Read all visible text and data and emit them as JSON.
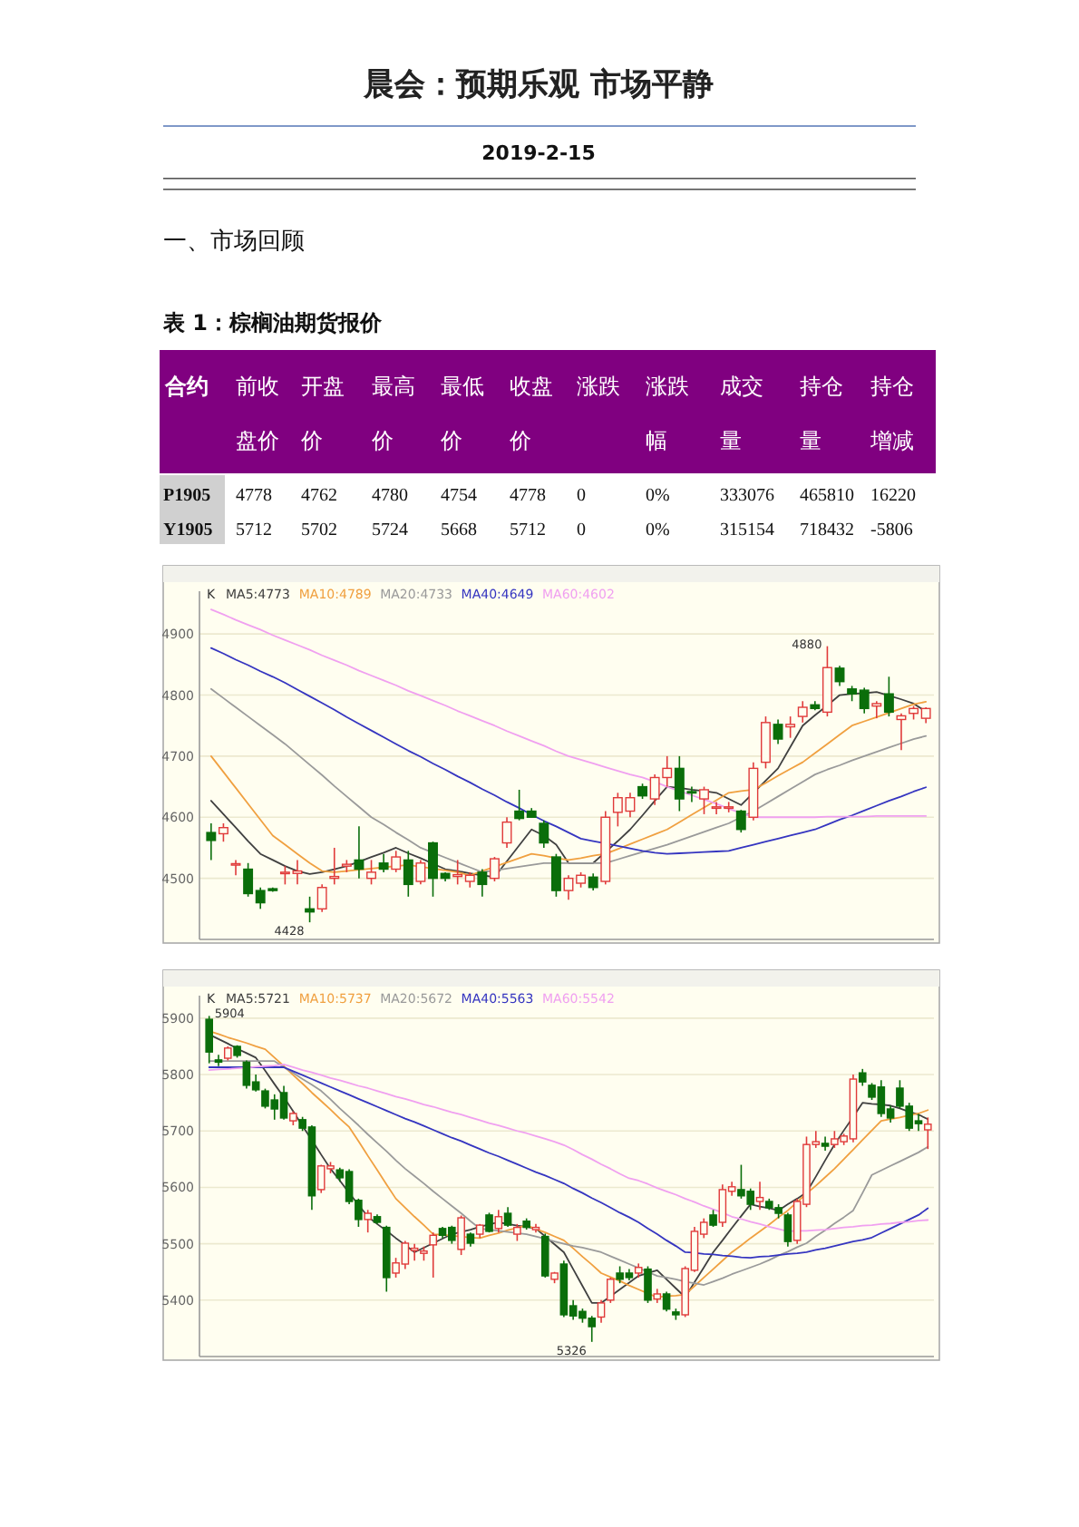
{
  "chart_data": [
    {
      "type": "other",
      "title": "晨会：预期乐观 市场平静",
      "subtitle": "2019-2-15",
      "annotations": [
        "一、市场回顾",
        "表 1：棕榈油期货报价"
      ],
      "ylabel": "合约",
      "categories": [
        "前收盘价",
        "开盘价",
        "最高价",
        "最低价",
        "收盘价",
        "涨跌",
        "涨跌幅",
        "成交量",
        "持仓量",
        "持仓增减"
      ],
      "y_categories": [
        "P1905",
        "Y1905"
      ],
      "cell_labels": [
        [
          "4778",
          "4762",
          "4780",
          "4754",
          "4778",
          "0",
          "0%",
          "333076",
          "465810",
          "16220"
        ],
        [
          "5712",
          "5702",
          "5724",
          "5668",
          "5712",
          "0",
          "0%",
          "315154",
          "718432",
          "-5806"
        ]
      ]
    },
    {
      "type": "candlestick",
      "categories": [
        null,
        null,
        null,
        null,
        null,
        null,
        null,
        null,
        null,
        null,
        null,
        null,
        null,
        null,
        null,
        null,
        null,
        null,
        null,
        null,
        null,
        null,
        null,
        null,
        null,
        null,
        null,
        null,
        null,
        null,
        null,
        null,
        null,
        null,
        null,
        null,
        null,
        null,
        null,
        null,
        null,
        null,
        null,
        null,
        null,
        null,
        null,
        null,
        null,
        null,
        null,
        null,
        null,
        null,
        null,
        null,
        null,
        null,
        null
      ],
      "ohlc": [
        [
          4575,
          4590,
          4530,
          4562
        ],
        [
          4573,
          4590,
          4560,
          4583
        ],
        [
          4522,
          4530,
          4505,
          4524
        ],
        [
          4515,
          4525,
          4470,
          4475
        ],
        [
          4480,
          4485,
          4450,
          4460
        ],
        [
          4483,
          4485,
          4478,
          4480
        ],
        [
          4508,
          4520,
          4490,
          4510
        ],
        [
          4508,
          4530,
          4490,
          4512
        ],
        [
          4450,
          4470,
          4428,
          4445
        ],
        [
          4450,
          4490,
          4445,
          4485
        ],
        [
          4500,
          4550,
          4490,
          4503
        ],
        [
          4520,
          4530,
          4510,
          4523
        ],
        [
          4530,
          4585,
          4500,
          4515
        ],
        [
          4500,
          4530,
          4490,
          4510
        ],
        [
          4525,
          4540,
          4510,
          4515
        ],
        [
          4515,
          4545,
          4510,
          4535
        ],
        [
          4530,
          4545,
          4470,
          4490
        ],
        [
          4495,
          4530,
          4490,
          4525
        ],
        [
          4558,
          4560,
          4470,
          4500
        ],
        [
          4508,
          4510,
          4495,
          4500
        ],
        [
          4503,
          4530,
          4490,
          4506
        ],
        [
          4495,
          4510,
          4485,
          4505
        ],
        [
          4510,
          4515,
          4470,
          4490
        ],
        [
          4500,
          4535,
          4495,
          4532
        ],
        [
          4558,
          4600,
          4550,
          4592
        ],
        [
          4610,
          4645,
          4595,
          4598
        ],
        [
          4610,
          4615,
          4600,
          4600
        ],
        [
          4590,
          4595,
          4550,
          4558
        ],
        [
          4535,
          4540,
          4470,
          4480
        ],
        [
          4480,
          4505,
          4465,
          4500
        ],
        [
          4492,
          4510,
          4485,
          4505
        ],
        [
          4502,
          4508,
          4480,
          4485
        ],
        [
          4495,
          4610,
          4490,
          4600
        ],
        [
          4608,
          4640,
          4585,
          4632
        ],
        [
          4610,
          4640,
          4600,
          4632
        ],
        [
          4650,
          4655,
          4630,
          4635
        ],
        [
          4630,
          4670,
          4620,
          4665
        ],
        [
          4665,
          4700,
          4650,
          4680
        ],
        [
          4680,
          4700,
          4610,
          4630
        ],
        [
          4642,
          4650,
          4625,
          4640
        ],
        [
          4630,
          4650,
          4605,
          4645
        ],
        [
          4615,
          4625,
          4605,
          4617
        ],
        [
          4615,
          4625,
          4608,
          4617
        ],
        [
          4610,
          4612,
          4575,
          4580
        ],
        [
          4600,
          4690,
          4595,
          4680
        ],
        [
          4690,
          4765,
          4680,
          4755
        ],
        [
          4752,
          4760,
          4720,
          4728
        ],
        [
          4748,
          4765,
          4730,
          4752
        ],
        [
          4765,
          4790,
          4755,
          4780
        ],
        [
          4784,
          4790,
          4775,
          4778
        ],
        [
          4772,
          4880,
          4765,
          4845
        ],
        [
          4844,
          4848,
          4815,
          4822
        ],
        [
          4810,
          4815,
          4790,
          4802
        ],
        [
          4808,
          4812,
          4770,
          4778
        ],
        [
          4782,
          4790,
          4762,
          4786
        ],
        [
          4802,
          4830,
          4765,
          4772
        ],
        [
          4760,
          4770,
          4710,
          4766
        ],
        [
          4770,
          4782,
          4760,
          4778
        ],
        [
          4762,
          4780,
          4754,
          4778
        ]
      ],
      "series": [
        {
          "type": "line",
          "name": "MA5:4773",
          "color": "#404040",
          "values": [
            4627,
            4605,
            4583,
            4561,
            4540,
            4530,
            4520,
            4512,
            4507,
            4510,
            4515,
            4520,
            4527,
            4535,
            4542,
            4550,
            4541,
            4533,
            4524,
            4515,
            4512,
            4508,
            4505,
            4502,
            4528,
            4554,
            4580,
            4570,
            4555,
            4525,
            4525,
            4525,
            4543,
            4561,
            4580,
            4603,
            4627,
            4650,
            4648,
            4645,
            4643,
            4640,
            4630,
            4620,
            4640,
            4660,
            4680,
            4715,
            4750,
            4767,
            4783,
            4800,
            4802,
            4803,
            4805,
            4799,
            4793,
            4786,
            4773
          ]
        },
        {
          "type": "line",
          "name": "MA10:4789",
          "color": "#f0a040",
          "values": [
            4700,
            4674,
            4648,
            4622,
            4596,
            4570,
            4555,
            4540,
            4525,
            4512,
            4510,
            4512,
            4514,
            4516,
            4518,
            4520,
            4522,
            4519,
            4516,
            4513,
            4510,
            4505,
            4512,
            4519,
            4526,
            4533,
            4540,
            4537,
            4533,
            4530,
            4533,
            4537,
            4540,
            4548,
            4556,
            4564,
            4572,
            4580,
            4592,
            4604,
            4616,
            4628,
            4640,
            4643,
            4645,
            4656,
            4668,
            4679,
            4690,
            4705,
            4720,
            4735,
            4750,
            4757,
            4764,
            4771,
            4778,
            4785,
            4789
          ]
        },
        {
          "type": "line",
          "name": "MA20:4733",
          "color": "#9a9a9a",
          "values": [
            4810,
            4795,
            4780,
            4765,
            4750,
            4735,
            4720,
            4703,
            4686,
            4669,
            4651,
            4634,
            4617,
            4600,
            4588,
            4575,
            4563,
            4550,
            4542,
            4534,
            4526,
            4518,
            4510,
            4513,
            4516,
            4519,
            4522,
            4525,
            4525,
            4525,
            4525,
            4525,
            4525,
            4531,
            4537,
            4543,
            4549,
            4555,
            4562,
            4569,
            4576,
            4583,
            4590,
            4600,
            4610,
            4622,
            4634,
            4646,
            4658,
            4670,
            4678,
            4685,
            4693,
            4700,
            4707,
            4714,
            4721,
            4728,
            4733
          ]
        },
        {
          "type": "line",
          "name": "MA40:4649",
          "color": "#3535c0",
          "values": [
            4877,
            4868,
            4858,
            4849,
            4839,
            4830,
            4820,
            4809,
            4798,
            4787,
            4776,
            4764,
            4753,
            4742,
            4731,
            4720,
            4709,
            4699,
            4688,
            4678,
            4667,
            4657,
            4646,
            4636,
            4625,
            4615,
            4604,
            4594,
            4585,
            4575,
            4565,
            4561,
            4557,
            4553,
            4549,
            4545,
            4542,
            4540,
            4541,
            4542,
            4543,
            4544,
            4545,
            4550,
            4555,
            4560,
            4565,
            4570,
            4575,
            4580,
            4588,
            4596,
            4603,
            4611,
            4619,
            4627,
            4634,
            4642,
            4649
          ]
        },
        {
          "type": "line",
          "name": "MA60:4602",
          "color": "#f0a0f0",
          "values": [
            4940,
            4932,
            4923,
            4915,
            4907,
            4898,
            4890,
            4882,
            4874,
            4865,
            4857,
            4849,
            4840,
            4832,
            4824,
            4816,
            4807,
            4799,
            4791,
            4783,
            4774,
            4766,
            4758,
            4750,
            4741,
            4733,
            4725,
            4717,
            4708,
            4700,
            4694,
            4688,
            4682,
            4676,
            4670,
            4665,
            4658,
            4650,
            4643,
            4636,
            4629,
            4622,
            4614,
            4607,
            4600,
            4600,
            4600,
            4600,
            4600,
            4600,
            4601,
            4601,
            4601,
            4601,
            4602,
            4602,
            4602,
            4602,
            4602
          ]
        }
      ],
      "legend_title": "K",
      "legend": "top left",
      "grid": "y",
      "tick_labels": "y",
      "ylim": [
        4400,
        4970
      ],
      "yticks": [
        4500,
        4600,
        4700,
        4800,
        4900
      ],
      "annotations": [
        "4880",
        "4428"
      ]
    },
    {
      "type": "candlestick",
      "categories": [
        null,
        null,
        null,
        null,
        null,
        null,
        null,
        null,
        null,
        null,
        null,
        null,
        null,
        null,
        null,
        null,
        null,
        null,
        null,
        null,
        null,
        null,
        null,
        null,
        null,
        null,
        null,
        null,
        null,
        null,
        null,
        null,
        null,
        null,
        null,
        null,
        null,
        null,
        null,
        null,
        null,
        null,
        null,
        null,
        null,
        null,
        null,
        null,
        null,
        null,
        null,
        null,
        null,
        null,
        null,
        null,
        null,
        null,
        null,
        null,
        null,
        null,
        null,
        null,
        null,
        null,
        null,
        null,
        null,
        null,
        null,
        null,
        null,
        null,
        null,
        null,
        null,
        null
      ],
      "ohlc": [
        [
          5898,
          5904,
          5820,
          5840
        ],
        [
          5826,
          5835,
          5815,
          5822
        ],
        [
          5829,
          5850,
          5825,
          5847
        ],
        [
          5850,
          5852,
          5830,
          5834
        ],
        [
          5822,
          5825,
          5775,
          5781
        ],
        [
          5787,
          5800,
          5770,
          5773
        ],
        [
          5771,
          5775,
          5740,
          5744
        ],
        [
          5755,
          5765,
          5720,
          5739
        ],
        [
          5768,
          5780,
          5720,
          5723
        ],
        [
          5718,
          5735,
          5710,
          5731
        ],
        [
          5720,
          5725,
          5700,
          5705
        ],
        [
          5707,
          5710,
          5560,
          5585
        ],
        [
          5596,
          5640,
          5590,
          5638
        ],
        [
          5633,
          5645,
          5625,
          5638
        ],
        [
          5631,
          5635,
          5610,
          5617
        ],
        [
          5628,
          5632,
          5570,
          5575
        ],
        [
          5577,
          5580,
          5530,
          5543
        ],
        [
          5543,
          5560,
          5520,
          5554
        ],
        [
          5548,
          5552,
          5535,
          5538
        ],
        [
          5529,
          5532,
          5415,
          5440
        ],
        [
          5448,
          5475,
          5440,
          5466
        ],
        [
          5464,
          5505,
          5455,
          5501
        ],
        [
          5488,
          5500,
          5470,
          5492
        ],
        [
          5483,
          5495,
          5470,
          5487
        ],
        [
          5498,
          5520,
          5440,
          5515
        ],
        [
          5527,
          5530,
          5510,
          5515
        ],
        [
          5529,
          5532,
          5500,
          5506
        ],
        [
          5490,
          5550,
          5480,
          5546
        ],
        [
          5517,
          5520,
          5495,
          5501
        ],
        [
          5517,
          5535,
          5510,
          5533
        ],
        [
          5551,
          5555,
          5520,
          5522
        ],
        [
          5527,
          5560,
          5520,
          5548
        ],
        [
          5554,
          5565,
          5530,
          5533
        ],
        [
          5517,
          5535,
          5505,
          5529
        ],
        [
          5540,
          5545,
          5525,
          5529
        ],
        [
          5525,
          5535,
          5520,
          5529
        ],
        [
          5513,
          5518,
          5440,
          5443
        ],
        [
          5437,
          5450,
          5430,
          5448
        ],
        [
          5464,
          5470,
          5370,
          5374
        ],
        [
          5390,
          5400,
          5365,
          5372
        ],
        [
          5380,
          5385,
          5360,
          5368
        ],
        [
          5368,
          5372,
          5326,
          5353
        ],
        [
          5370,
          5400,
          5360,
          5395
        ],
        [
          5400,
          5440,
          5395,
          5437
        ],
        [
          5448,
          5460,
          5430,
          5437
        ],
        [
          5448,
          5455,
          5435,
          5440
        ],
        [
          5448,
          5465,
          5440,
          5458
        ],
        [
          5455,
          5460,
          5395,
          5400
        ],
        [
          5402,
          5420,
          5395,
          5411
        ],
        [
          5411,
          5415,
          5380,
          5384
        ],
        [
          5379,
          5385,
          5365,
          5374
        ],
        [
          5374,
          5460,
          5370,
          5456
        ],
        [
          5453,
          5530,
          5450,
          5522
        ],
        [
          5517,
          5545,
          5510,
          5538
        ],
        [
          5551,
          5560,
          5530,
          5533
        ],
        [
          5538,
          5605,
          5530,
          5596
        ],
        [
          5593,
          5610,
          5585,
          5601
        ],
        [
          5596,
          5640,
          5580,
          5585
        ],
        [
          5593,
          5598,
          5560,
          5570
        ],
        [
          5575,
          5610,
          5560,
          5582
        ],
        [
          5575,
          5580,
          5560,
          5564
        ],
        [
          5564,
          5570,
          5545,
          5554
        ],
        [
          5551,
          5555,
          5495,
          5504
        ],
        [
          5506,
          5580,
          5500,
          5575
        ],
        [
          5570,
          5690,
          5565,
          5676
        ],
        [
          5676,
          5700,
          5670,
          5681
        ],
        [
          5678,
          5690,
          5665,
          5673
        ],
        [
          5676,
          5700,
          5670,
          5686
        ],
        [
          5681,
          5695,
          5675,
          5691
        ],
        [
          5686,
          5800,
          5680,
          5792
        ],
        [
          5803,
          5810,
          5780,
          5787
        ],
        [
          5781,
          5785,
          5755,
          5760
        ],
        [
          5778,
          5790,
          5725,
          5731
        ],
        [
          5739,
          5745,
          5715,
          5723
        ],
        [
          5776,
          5790,
          5740,
          5744
        ],
        [
          5744,
          5750,
          5700,
          5705
        ],
        [
          5718,
          5730,
          5700,
          5713
        ],
        [
          5702,
          5724,
          5668,
          5712
        ]
      ],
      "series": [
        {
          "type": "line",
          "name": "MA5:5721",
          "color": "#404040",
          "values": [
            5871,
            5863,
            5855,
            5846,
            5838,
            5830,
            5807,
            5783,
            5760,
            5735,
            5709,
            5684,
            5658,
            5633,
            5612,
            5590,
            5569,
            5548,
            5535,
            5523,
            5510,
            5498,
            5485,
            5493,
            5501,
            5509,
            5517,
            5521,
            5525,
            5530,
            5534,
            5538,
            5535,
            5532,
            5530,
            5527,
            5513,
            5499,
            5485,
            5455,
            5425,
            5395,
            5395,
            5407,
            5419,
            5431,
            5443,
            5448,
            5453,
            5437,
            5421,
            5405,
            5432,
            5458,
            5485,
            5506,
            5528,
            5549,
            5570,
            5566,
            5563,
            5559,
            5570,
            5580,
            5591,
            5619,
            5648,
            5676,
            5701,
            5725,
            5750,
            5748,
            5747,
            5745,
            5740,
            5734,
            5729,
            5721
          ]
        },
        {
          "type": "line",
          "name": "MA10:5737",
          "color": "#f0a040",
          "values": [
            5877,
            5872,
            5866,
            5861,
            5856,
            5850,
            5845,
            5830,
            5815,
            5799,
            5784,
            5768,
            5753,
            5738,
            5722,
            5707,
            5682,
            5656,
            5631,
            5605,
            5580,
            5564,
            5548,
            5533,
            5517,
            5516,
            5514,
            5513,
            5511,
            5510,
            5515,
            5519,
            5524,
            5528,
            5533,
            5526,
            5520,
            5513,
            5506,
            5492,
            5477,
            5463,
            5448,
            5441,
            5434,
            5426,
            5419,
            5412,
            5405,
            5407,
            5408,
            5410,
            5425,
            5440,
            5455,
            5470,
            5485,
            5497,
            5510,
            5522,
            5534,
            5547,
            5559,
            5574,
            5589,
            5603,
            5618,
            5633,
            5650,
            5667,
            5684,
            5701,
            5718,
            5721,
            5724,
            5728,
            5731,
            5737
          ]
        },
        {
          "type": "line",
          "name": "MA20:5672",
          "color": "#9a9a9a",
          "values": [
            5824,
            5824,
            5824,
            5824,
            5824,
            5824,
            5824,
            5824,
            5813,
            5803,
            5792,
            5782,
            5771,
            5756,
            5740,
            5725,
            5710,
            5694,
            5679,
            5664,
            5648,
            5633,
            5620,
            5607,
            5593,
            5580,
            5567,
            5554,
            5540,
            5527,
            5525,
            5523,
            5521,
            5519,
            5517,
            5513,
            5509,
            5504,
            5500,
            5496,
            5493,
            5489,
            5485,
            5478,
            5471,
            5464,
            5457,
            5450,
            5443,
            5440,
            5437,
            5433,
            5430,
            5427,
            5433,
            5439,
            5446,
            5452,
            5458,
            5464,
            5471,
            5479,
            5486,
            5494,
            5501,
            5513,
            5524,
            5536,
            5547,
            5559,
            5590,
            5622,
            5630,
            5638,
            5646,
            5654,
            5662,
            5672
          ]
        },
        {
          "type": "line",
          "name": "MA40:5563",
          "color": "#3535c0",
          "values": [
            5813,
            5813,
            5813,
            5813,
            5813,
            5813,
            5813,
            5813,
            5813,
            5806,
            5799,
            5792,
            5785,
            5778,
            5771,
            5764,
            5757,
            5750,
            5743,
            5736,
            5729,
            5722,
            5716,
            5709,
            5702,
            5695,
            5688,
            5682,
            5675,
            5668,
            5661,
            5655,
            5648,
            5641,
            5634,
            5627,
            5621,
            5614,
            5607,
            5598,
            5590,
            5581,
            5573,
            5564,
            5555,
            5547,
            5538,
            5527,
            5517,
            5506,
            5496,
            5485,
            5484,
            5482,
            5481,
            5479,
            5478,
            5476,
            5475,
            5477,
            5478,
            5480,
            5482,
            5483,
            5485,
            5489,
            5492,
            5496,
            5500,
            5504,
            5507,
            5511,
            5519,
            5527,
            5535,
            5543,
            5551,
            5563
          ]
        },
        {
          "type": "line",
          "name": "MA60:5542",
          "color": "#f0a0f0",
          "values": [
            5808,
            5809,
            5810,
            5811,
            5812,
            5814,
            5815,
            5816,
            5818,
            5813,
            5808,
            5804,
            5799,
            5794,
            5790,
            5785,
            5780,
            5776,
            5771,
            5766,
            5761,
            5757,
            5752,
            5747,
            5743,
            5738,
            5733,
            5729,
            5724,
            5719,
            5714,
            5710,
            5705,
            5700,
            5696,
            5691,
            5686,
            5681,
            5675,
            5667,
            5658,
            5650,
            5641,
            5633,
            5624,
            5616,
            5612,
            5606,
            5599,
            5593,
            5587,
            5580,
            5574,
            5567,
            5561,
            5555,
            5548,
            5544,
            5539,
            5535,
            5530,
            5526,
            5522,
            5523,
            5523,
            5524,
            5525,
            5527,
            5529,
            5530,
            5532,
            5533,
            5535,
            5536,
            5538,
            5539,
            5541,
            5542
          ]
        }
      ],
      "legend_title": "K",
      "legend": "top left",
      "grid": "y",
      "tick_labels": "y",
      "ylim": [
        5300,
        5940
      ],
      "yticks": [
        5400,
        5500,
        5600,
        5700,
        5800,
        5900
      ],
      "annotations": [
        "5904",
        "5326"
      ]
    }
  ]
}
